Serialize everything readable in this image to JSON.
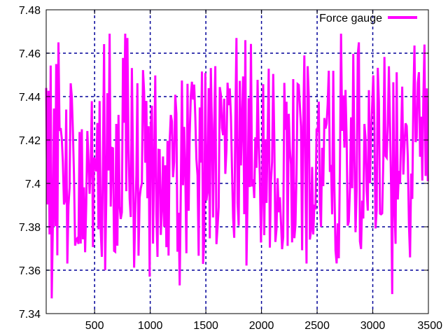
{
  "chart_data": {
    "type": "line",
    "title": "",
    "xlabel": "",
    "ylabel": "",
    "xlim": [
      65,
      3500
    ],
    "ylim": [
      7.34,
      7.48
    ],
    "grid": true,
    "legend_position": "top-right",
    "x_ticks": [
      500,
      1000,
      1500,
      2000,
      2500,
      3000,
      3500
    ],
    "x_tick_labels": [
      "500",
      "1000",
      "1500",
      "2000",
      "2500",
      "3000",
      "3500"
    ],
    "y_ticks": [
      7.34,
      7.36,
      7.38,
      7.4,
      7.42,
      7.44,
      7.46,
      7.48
    ],
    "y_tick_labels": [
      "7.34",
      "7.36",
      "7.38",
      "7.4",
      "7.42",
      "7.44",
      "7.46",
      "7.48"
    ],
    "colors": {
      "series": "#ff00ff",
      "grid": "#000099",
      "axis": "#000000"
    },
    "series": [
      {
        "name": "Force gauge",
        "description": "Noisy force signal oscillating around 7.41, range approx 7.347 to 7.469, sampled about every 10 units from x=65 to x=3500",
        "x_start": 65,
        "x_end": 3500,
        "x_step": 10,
        "mean": 7.41,
        "min": 7.347,
        "max": 7.469,
        "notable_points": [
          {
            "x": 65,
            "y": 7.408
          },
          {
            "x": 70,
            "y": 7.444
          },
          {
            "x": 120,
            "y": 7.347
          },
          {
            "x": 160,
            "y": 7.455
          },
          {
            "x": 180,
            "y": 7.465
          },
          {
            "x": 600,
            "y": 7.36
          },
          {
            "x": 640,
            "y": 7.469
          },
          {
            "x": 780,
            "y": 7.469
          },
          {
            "x": 800,
            "y": 7.467
          },
          {
            "x": 1000,
            "y": 7.357
          },
          {
            "x": 1270,
            "y": 7.353
          },
          {
            "x": 1780,
            "y": 7.467
          },
          {
            "x": 1860,
            "y": 7.466
          },
          {
            "x": 2720,
            "y": 7.469
          },
          {
            "x": 2880,
            "y": 7.465
          },
          {
            "x": 3180,
            "y": 7.349
          },
          {
            "x": 3470,
            "y": 7.464
          },
          {
            "x": 3500,
            "y": 7.401
          }
        ]
      }
    ]
  }
}
